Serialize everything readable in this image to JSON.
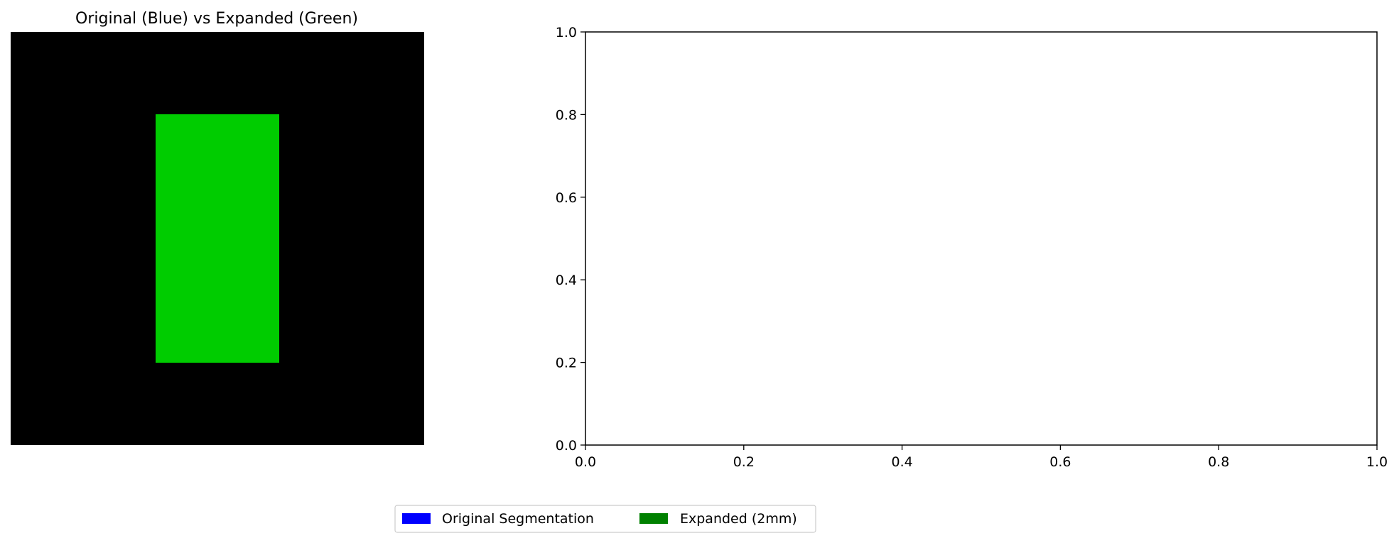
{
  "image_panel": {
    "title": "Original (Blue) vs Expanded (Green)",
    "background_color": "#000000",
    "expanded_region_color": "#00cc00"
  },
  "chart_data": {
    "type": "line",
    "title": "",
    "xlabel": "",
    "ylabel": "",
    "xlim": [
      0,
      1
    ],
    "ylim": [
      0,
      1
    ],
    "xticks": [
      "0.0",
      "0.2",
      "0.4",
      "0.6",
      "0.8",
      "1.0"
    ],
    "yticks": [
      "0.0",
      "0.2",
      "0.4",
      "0.6",
      "0.8",
      "1.0"
    ],
    "series": [],
    "grid": false
  },
  "legend": {
    "placement": "bottom-center",
    "entries": [
      {
        "label": "Original Segmentation",
        "color": "#0000ff"
      },
      {
        "label": "Expanded (2mm)",
        "color": "#008000"
      }
    ]
  }
}
